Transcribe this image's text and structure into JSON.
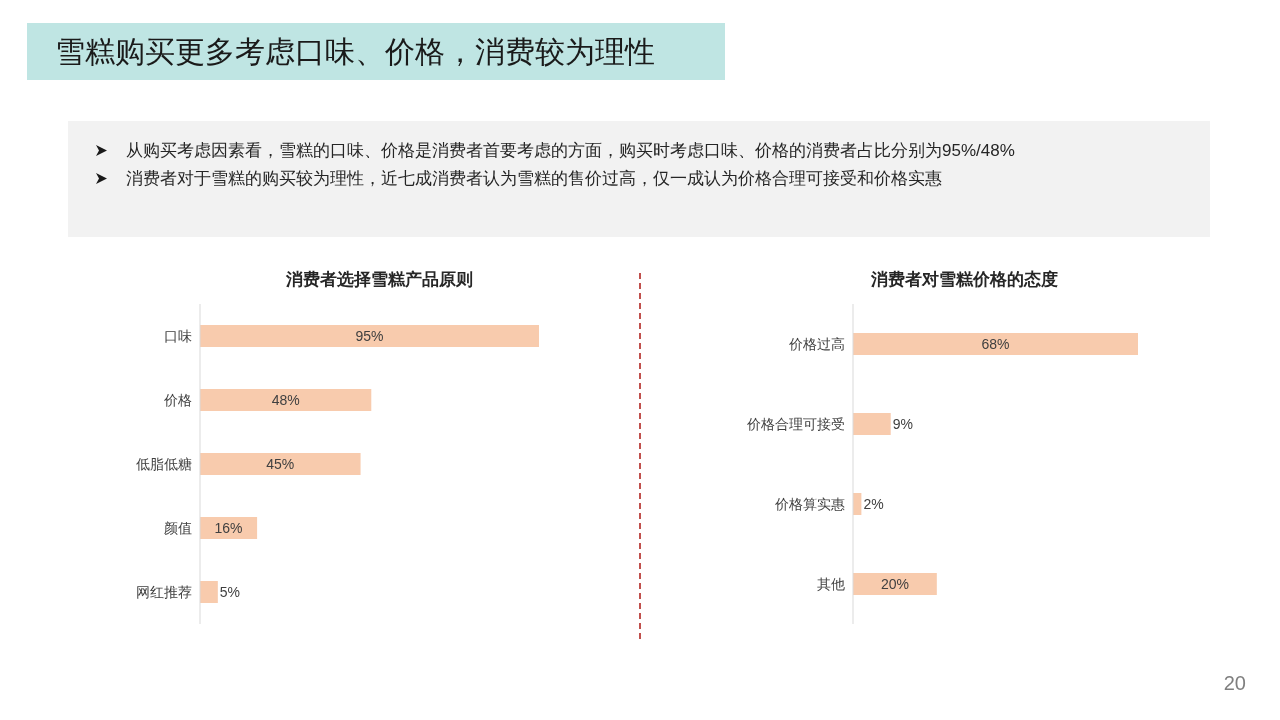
{
  "chart_data": [
    {
      "type": "bar",
      "orientation": "horizontal",
      "title": "消费者选择雪糕产品原则",
      "categories": [
        "口味",
        "价格",
        "低脂低糖",
        "颜值",
        "网红推荐"
      ],
      "values": [
        95,
        48,
        45,
        16,
        5
      ],
      "value_labels": [
        "95%",
        "48%",
        "45%",
        "16%",
        "5%"
      ],
      "color": "#f8cbad",
      "annotations": [
        "雪糕购买更多考虑口味、价格，消费较为理性",
        "从购买考虑因素看，雪糕的口味、价格是消费者首要考虑的方面，购买时考虑口味、价格的消费者占比分别为95%/48%",
        "消费者对于雪糕的购买较为理性，近七成消费者认为雪糕的售价过高，仅一成认为价格合理可接受和价格实惠",
        "20"
      ]
    },
    {
      "type": "bar",
      "orientation": "horizontal",
      "title": "消费者对雪糕价格的态度",
      "categories": [
        "价格过高",
        "价格合理可接受",
        "价格算实惠",
        "其他"
      ],
      "values": [
        68,
        9,
        2,
        20
      ],
      "value_labels": [
        "68%",
        "9%",
        "2%",
        "20%"
      ],
      "color": "#f8cbad"
    }
  ]
}
